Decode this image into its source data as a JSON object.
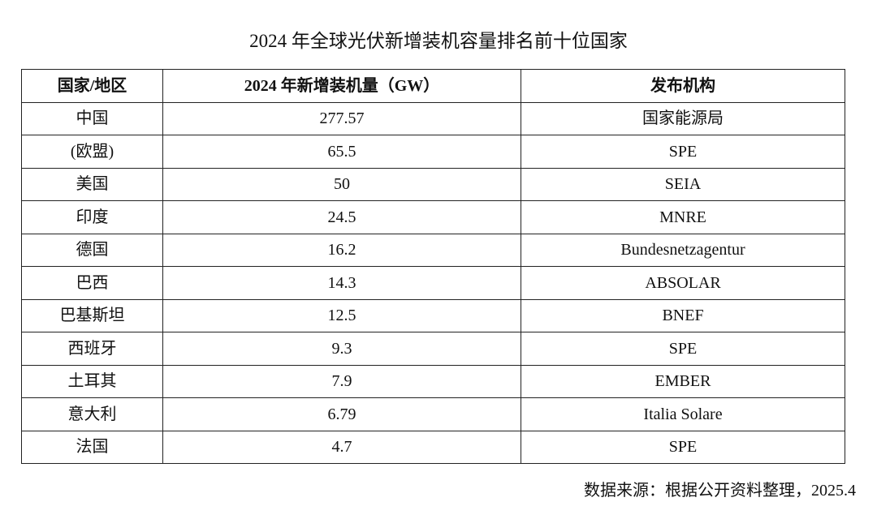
{
  "title": "2024 年全球光伏新增装机容量排名前十位国家",
  "table": {
    "headers": [
      "国家/地区",
      "2024 年新增装机量（GW）",
      "发布机构"
    ],
    "rows": [
      [
        "中国",
        "277.57",
        "国家能源局"
      ],
      [
        "(欧盟)",
        "65.5",
        "SPE"
      ],
      [
        "美国",
        "50",
        "SEIA"
      ],
      [
        "印度",
        "24.5",
        "MNRE"
      ],
      [
        "德国",
        "16.2",
        "Bundesnetzagentur"
      ],
      [
        "巴西",
        "14.3",
        "ABSOLAR"
      ],
      [
        "巴基斯坦",
        "12.5",
        "BNEF"
      ],
      [
        "西班牙",
        "9.3",
        "SPE"
      ],
      [
        "土耳其",
        "7.9",
        "EMBER"
      ],
      [
        "意大利",
        "6.79",
        "Italia Solare"
      ],
      [
        "法国",
        "4.7",
        "SPE"
      ]
    ]
  },
  "source": "数据来源：根据公开资料整理，2025.4"
}
